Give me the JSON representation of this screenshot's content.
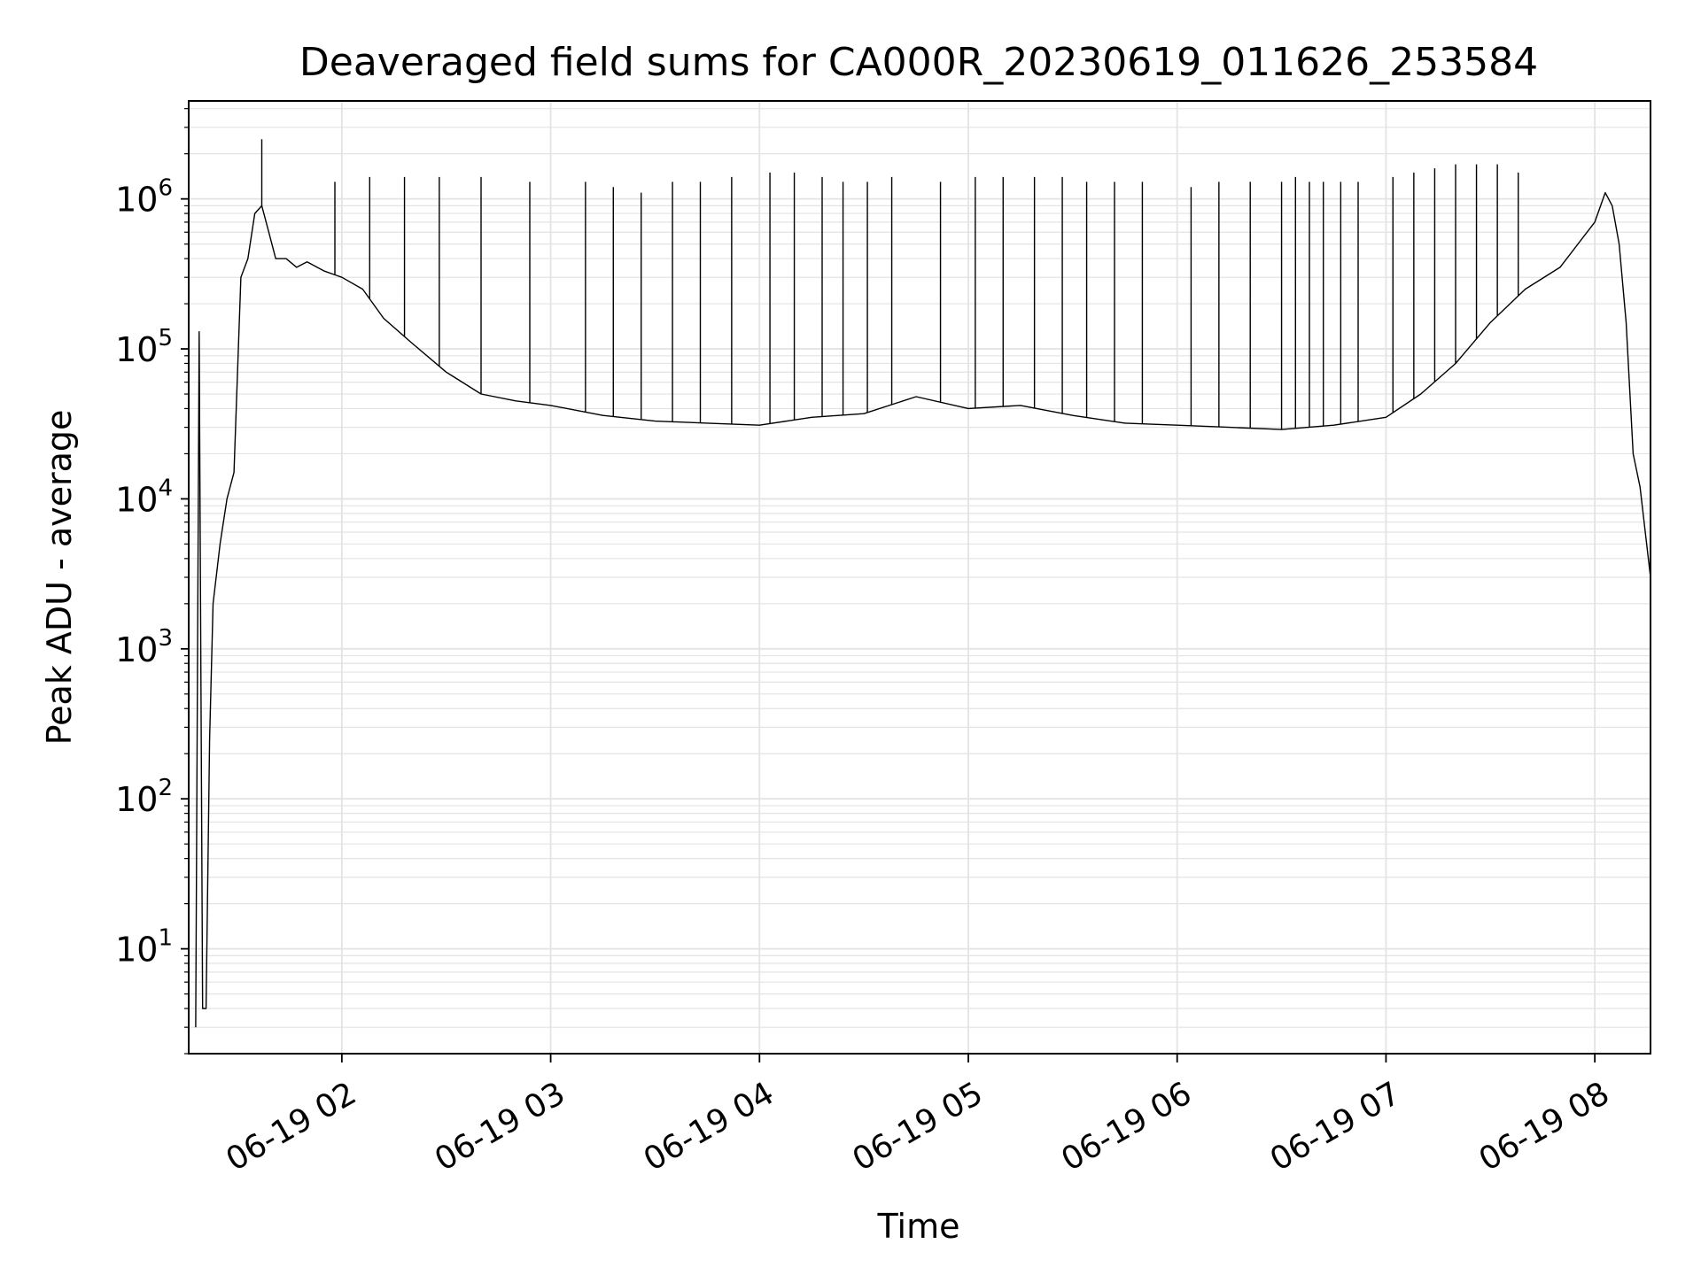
{
  "chart_data": {
    "type": "line",
    "title": "Deaveraged field sums for CA000R_20230619_011626_253584",
    "xlabel": "Time",
    "ylabel": "Peak ADU - average",
    "yscale": "log",
    "grid": true,
    "line_color": "#000000",
    "grid_color": "#e3e3e3",
    "xlim": [
      "2023-06-19 01:16",
      "2023-06-19 08:16"
    ],
    "ylim": [
      2,
      4500000
    ],
    "x_ticks": [
      {
        "value": "2023-06-19 02:00",
        "label": "06-19 02"
      },
      {
        "value": "2023-06-19 03:00",
        "label": "06-19 03"
      },
      {
        "value": "2023-06-19 04:00",
        "label": "06-19 04"
      },
      {
        "value": "2023-06-19 05:00",
        "label": "06-19 05"
      },
      {
        "value": "2023-06-19 06:00",
        "label": "06-19 06"
      },
      {
        "value": "2023-06-19 07:00",
        "label": "06-19 07"
      },
      {
        "value": "2023-06-19 08:00",
        "label": "06-19 08"
      }
    ],
    "y_ticks": [
      {
        "value": 10,
        "base": "10",
        "exp": "1"
      },
      {
        "value": 100,
        "base": "10",
        "exp": "2"
      },
      {
        "value": 1000,
        "base": "10",
        "exp": "3"
      },
      {
        "value": 10000,
        "base": "10",
        "exp": "4"
      },
      {
        "value": 100000,
        "base": "10",
        "exp": "5"
      },
      {
        "value": 1000000,
        "base": "10",
        "exp": "6"
      }
    ],
    "series": [
      {
        "x": [
          "2023-06-19 01:18",
          "2023-06-19 01:19",
          "2023-06-19 01:20",
          "2023-06-19 01:21",
          "2023-06-19 01:22",
          "2023-06-19 01:23",
          "2023-06-19 01:25",
          "2023-06-19 01:27",
          "2023-06-19 01:29",
          "2023-06-19 01:31",
          "2023-06-19 01:33",
          "2023-06-19 01:35",
          "2023-06-19 01:37",
          "2023-06-19 01:39",
          "2023-06-19 01:41",
          "2023-06-19 01:44",
          "2023-06-19 01:47",
          "2023-06-19 01:50",
          "2023-06-19 01:55",
          "2023-06-19 02:00",
          "2023-06-19 02:06",
          "2023-06-19 02:12",
          "2023-06-19 02:20",
          "2023-06-19 02:30",
          "2023-06-19 02:40",
          "2023-06-19 02:50",
          "2023-06-19 03:00",
          "2023-06-19 03:15",
          "2023-06-19 03:30",
          "2023-06-19 03:45",
          "2023-06-19 04:00",
          "2023-06-19 04:15",
          "2023-06-19 04:30",
          "2023-06-19 04:45",
          "2023-06-19 05:00",
          "2023-06-19 05:15",
          "2023-06-19 05:30",
          "2023-06-19 05:45",
          "2023-06-19 06:00",
          "2023-06-19 06:15",
          "2023-06-19 06:30",
          "2023-06-19 06:45",
          "2023-06-19 07:00",
          "2023-06-19 07:10",
          "2023-06-19 07:20",
          "2023-06-19 07:30",
          "2023-06-19 07:40",
          "2023-06-19 07:50",
          "2023-06-19 08:00",
          "2023-06-19 08:03",
          "2023-06-19 08:05",
          "2023-06-19 08:07",
          "2023-06-19 08:09",
          "2023-06-19 08:11",
          "2023-06-19 08:13",
          "2023-06-19 08:16"
        ],
        "y": [
          3,
          130000,
          4,
          4,
          250,
          2000,
          5000,
          10000,
          15000,
          300000,
          400000,
          800000,
          900000,
          600000,
          400000,
          400000,
          350000,
          380000,
          330000,
          300000,
          250000,
          160000,
          110000,
          70000,
          50000,
          45000,
          42000,
          36000,
          33000,
          32000,
          31000,
          35000,
          37000,
          48000,
          40000,
          42000,
          36000,
          32000,
          31000,
          30000,
          29000,
          31000,
          35000,
          50000,
          80000,
          150000,
          250000,
          350000,
          700000,
          1100000,
          900000,
          500000,
          150000,
          20000,
          12000,
          3000
        ]
      }
    ],
    "spikes": {
      "x": [
        "2023-06-19 01:37",
        "2023-06-19 01:58",
        "2023-06-19 02:08",
        "2023-06-19 02:18",
        "2023-06-19 02:28",
        "2023-06-19 02:40",
        "2023-06-19 02:54",
        "2023-06-19 03:10",
        "2023-06-19 03:18",
        "2023-06-19 03:26",
        "2023-06-19 03:35",
        "2023-06-19 03:43",
        "2023-06-19 03:52",
        "2023-06-19 04:03",
        "2023-06-19 04:10",
        "2023-06-19 04:18",
        "2023-06-19 04:24",
        "2023-06-19 04:31",
        "2023-06-19 04:38",
        "2023-06-19 04:52",
        "2023-06-19 05:02",
        "2023-06-19 05:10",
        "2023-06-19 05:19",
        "2023-06-19 05:27",
        "2023-06-19 05:34",
        "2023-06-19 05:42",
        "2023-06-19 05:50",
        "2023-06-19 06:04",
        "2023-06-19 06:12",
        "2023-06-19 06:21",
        "2023-06-19 06:30",
        "2023-06-19 06:34",
        "2023-06-19 06:38",
        "2023-06-19 06:42",
        "2023-06-19 06:47",
        "2023-06-19 06:52",
        "2023-06-19 07:02",
        "2023-06-19 07:08",
        "2023-06-19 07:14",
        "2023-06-19 07:20",
        "2023-06-19 07:26",
        "2023-06-19 07:32",
        "2023-06-19 07:38"
      ],
      "y": [
        2500000,
        1300000,
        1400000,
        1400000,
        1400000,
        1400000,
        1300000,
        1300000,
        1200000,
        1100000,
        1300000,
        1300000,
        1400000,
        1500000,
        1500000,
        1400000,
        1300000,
        1300000,
        1400000,
        1300000,
        1400000,
        1400000,
        1400000,
        1400000,
        1300000,
        1300000,
        1300000,
        1200000,
        1300000,
        1300000,
        1300000,
        1400000,
        1300000,
        1300000,
        1300000,
        1300000,
        1400000,
        1500000,
        1600000,
        1700000,
        1700000,
        1700000,
        1500000
      ]
    }
  }
}
